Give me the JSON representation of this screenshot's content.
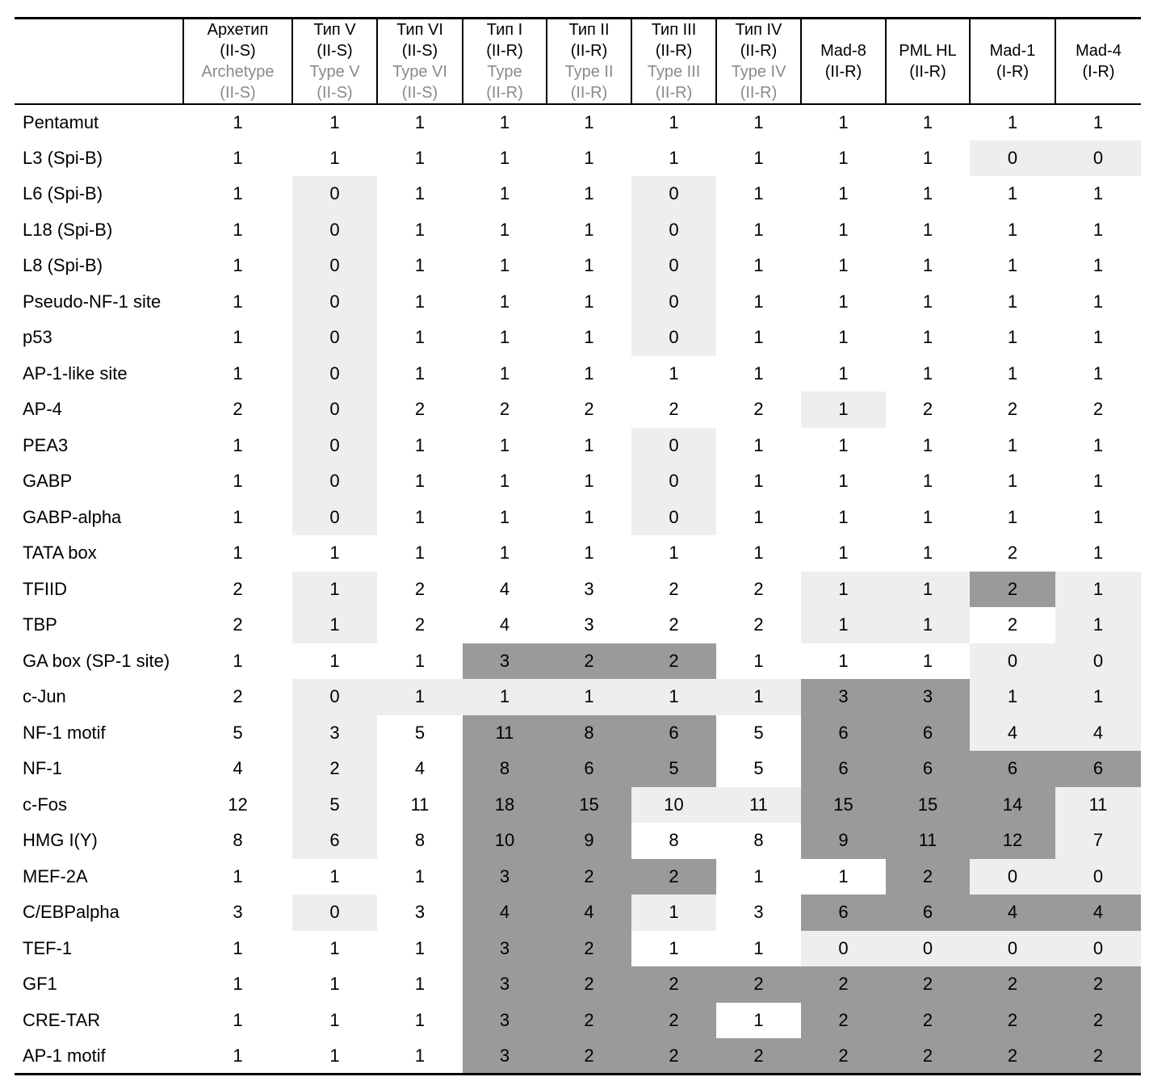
{
  "table": {
    "title_hint": "Transcription factor binding sites counts per promoter type",
    "corner_label": "",
    "columns": [
      {
        "id": "archetype",
        "lines_black": [
          "Архетип",
          "(II-S)"
        ],
        "lines_gray": [
          "Archetype",
          "(II-S)"
        ]
      },
      {
        "id": "type-v",
        "lines_black": [
          "Тип V",
          "(II-S)"
        ],
        "lines_gray": [
          "Type V",
          "(II-S)"
        ]
      },
      {
        "id": "type-vi",
        "lines_black": [
          "Тип VI",
          "(II-S)"
        ],
        "lines_gray": [
          "Type VI",
          "(II-S)"
        ]
      },
      {
        "id": "type-i",
        "lines_black": [
          "Тип I",
          "(II-R)"
        ],
        "lines_gray": [
          "Type",
          "(II-R)"
        ]
      },
      {
        "id": "type-ii",
        "lines_black": [
          "Тип II",
          "(II-R)"
        ],
        "lines_gray": [
          "Type II",
          "(II-R)"
        ]
      },
      {
        "id": "type-iii",
        "lines_black": [
          "Тип III",
          "(II-R)"
        ],
        "lines_gray": [
          "Type III",
          "(II-R)"
        ]
      },
      {
        "id": "type-iv",
        "lines_black": [
          "Тип IV",
          "(II-R)"
        ],
        "lines_gray": [
          "Type IV",
          "(II-R)"
        ]
      },
      {
        "id": "mad-8",
        "lines_black": [
          "Mad-8",
          "(II-R)"
        ],
        "lines_gray": []
      },
      {
        "id": "pml-hl",
        "lines_black": [
          "PML HL",
          "(II-R)"
        ],
        "lines_gray": []
      },
      {
        "id": "mad-1",
        "lines_black": [
          "Mad-1",
          "(I-R)"
        ],
        "lines_gray": []
      },
      {
        "id": "mad-4",
        "lines_black": [
          "Mad-4",
          "(I-R)"
        ],
        "lines_gray": []
      }
    ],
    "shading_legend": {
      "0": "white",
      "1": "light-gray",
      "2": "dark-gray"
    },
    "rows": [
      {
        "label": "Pentamut",
        "values": [
          1,
          1,
          1,
          1,
          1,
          1,
          1,
          1,
          1,
          1,
          1
        ],
        "shading": [
          0,
          0,
          0,
          0,
          0,
          0,
          0,
          0,
          0,
          0,
          0
        ]
      },
      {
        "label": "L3 (Spi-B)",
        "values": [
          1,
          1,
          1,
          1,
          1,
          1,
          1,
          1,
          1,
          0,
          0
        ],
        "shading": [
          0,
          0,
          0,
          0,
          0,
          0,
          0,
          0,
          0,
          1,
          1
        ]
      },
      {
        "label": "L6 (Spi-B)",
        "values": [
          1,
          0,
          1,
          1,
          1,
          0,
          1,
          1,
          1,
          1,
          1
        ],
        "shading": [
          0,
          1,
          0,
          0,
          0,
          1,
          0,
          0,
          0,
          0,
          0
        ]
      },
      {
        "label": "L18 (Spi-B)",
        "values": [
          1,
          0,
          1,
          1,
          1,
          0,
          1,
          1,
          1,
          1,
          1
        ],
        "shading": [
          0,
          1,
          0,
          0,
          0,
          1,
          0,
          0,
          0,
          0,
          0
        ]
      },
      {
        "label": "L8 (Spi-B)",
        "values": [
          1,
          0,
          1,
          1,
          1,
          0,
          1,
          1,
          1,
          1,
          1
        ],
        "shading": [
          0,
          1,
          0,
          0,
          0,
          1,
          0,
          0,
          0,
          0,
          0
        ]
      },
      {
        "label": "Pseudo-NF-1 site",
        "values": [
          1,
          0,
          1,
          1,
          1,
          0,
          1,
          1,
          1,
          1,
          1
        ],
        "shading": [
          0,
          1,
          0,
          0,
          0,
          1,
          0,
          0,
          0,
          0,
          0
        ]
      },
      {
        "label": "p53",
        "values": [
          1,
          0,
          1,
          1,
          1,
          0,
          1,
          1,
          1,
          1,
          1
        ],
        "shading": [
          0,
          1,
          0,
          0,
          0,
          1,
          0,
          0,
          0,
          0,
          0
        ]
      },
      {
        "label": "AP-1-like site",
        "values": [
          1,
          0,
          1,
          1,
          1,
          1,
          1,
          1,
          1,
          1,
          1
        ],
        "shading": [
          0,
          1,
          0,
          0,
          0,
          0,
          0,
          0,
          0,
          0,
          0
        ]
      },
      {
        "label": "AP-4",
        "values": [
          2,
          0,
          2,
          2,
          2,
          2,
          2,
          1,
          2,
          2,
          2
        ],
        "shading": [
          0,
          1,
          0,
          0,
          0,
          0,
          0,
          1,
          0,
          0,
          0
        ]
      },
      {
        "label": "PEA3",
        "values": [
          1,
          0,
          1,
          1,
          1,
          0,
          1,
          1,
          1,
          1,
          1
        ],
        "shading": [
          0,
          1,
          0,
          0,
          0,
          1,
          0,
          0,
          0,
          0,
          0
        ]
      },
      {
        "label": "GABP",
        "values": [
          1,
          0,
          1,
          1,
          1,
          0,
          1,
          1,
          1,
          1,
          1
        ],
        "shading": [
          0,
          1,
          0,
          0,
          0,
          1,
          0,
          0,
          0,
          0,
          0
        ]
      },
      {
        "label": "GABP-alpha",
        "values": [
          1,
          0,
          1,
          1,
          1,
          0,
          1,
          1,
          1,
          1,
          1
        ],
        "shading": [
          0,
          1,
          0,
          0,
          0,
          1,
          0,
          0,
          0,
          0,
          0
        ]
      },
      {
        "label": "TATA box",
        "values": [
          1,
          1,
          1,
          1,
          1,
          1,
          1,
          1,
          1,
          2,
          1
        ],
        "shading": [
          0,
          0,
          0,
          0,
          0,
          0,
          0,
          0,
          0,
          0,
          0
        ]
      },
      {
        "label": "TFIID",
        "values": [
          2,
          1,
          2,
          4,
          3,
          2,
          2,
          1,
          1,
          2,
          1
        ],
        "shading": [
          0,
          1,
          0,
          0,
          0,
          0,
          0,
          1,
          1,
          2,
          1
        ]
      },
      {
        "label": "TBP",
        "values": [
          2,
          1,
          2,
          4,
          3,
          2,
          2,
          1,
          1,
          2,
          1
        ],
        "shading": [
          0,
          1,
          0,
          0,
          0,
          0,
          0,
          1,
          1,
          0,
          1
        ]
      },
      {
        "label": "GA box (SP-1 site)",
        "values": [
          1,
          1,
          1,
          3,
          2,
          2,
          1,
          1,
          1,
          0,
          0
        ],
        "shading": [
          0,
          0,
          0,
          2,
          2,
          2,
          0,
          0,
          0,
          1,
          1
        ]
      },
      {
        "label": "c-Jun",
        "values": [
          2,
          0,
          1,
          1,
          1,
          1,
          1,
          3,
          3,
          1,
          1
        ],
        "shading": [
          0,
          1,
          1,
          1,
          1,
          1,
          1,
          2,
          2,
          1,
          1
        ]
      },
      {
        "label": "NF-1 motif",
        "values": [
          5,
          3,
          5,
          11,
          8,
          6,
          5,
          6,
          6,
          4,
          4
        ],
        "shading": [
          0,
          1,
          0,
          2,
          2,
          2,
          0,
          2,
          2,
          1,
          1
        ]
      },
      {
        "label": "NF-1",
        "values": [
          4,
          2,
          4,
          8,
          6,
          5,
          5,
          6,
          6,
          6,
          6
        ],
        "shading": [
          0,
          1,
          0,
          2,
          2,
          2,
          0,
          2,
          2,
          2,
          2
        ]
      },
      {
        "label": "c-Fos",
        "values": [
          12,
          5,
          11,
          18,
          15,
          10,
          11,
          15,
          15,
          14,
          11
        ],
        "shading": [
          0,
          1,
          0,
          2,
          2,
          1,
          1,
          2,
          2,
          2,
          1
        ]
      },
      {
        "label": "HMG I(Y)",
        "values": [
          8,
          6,
          8,
          10,
          9,
          8,
          8,
          9,
          11,
          12,
          7
        ],
        "shading": [
          0,
          1,
          0,
          2,
          2,
          0,
          0,
          2,
          2,
          2,
          1
        ]
      },
      {
        "label": "MEF-2A",
        "values": [
          1,
          1,
          1,
          3,
          2,
          2,
          1,
          1,
          2,
          0,
          0
        ],
        "shading": [
          0,
          0,
          0,
          2,
          2,
          2,
          0,
          0,
          2,
          1,
          1
        ]
      },
      {
        "label": "C/EBPalpha",
        "values": [
          3,
          0,
          3,
          4,
          4,
          1,
          3,
          6,
          6,
          4,
          4
        ],
        "shading": [
          0,
          1,
          0,
          2,
          2,
          1,
          0,
          2,
          2,
          2,
          2
        ]
      },
      {
        "label": "TEF-1",
        "values": [
          1,
          1,
          1,
          3,
          2,
          1,
          1,
          0,
          0,
          0,
          0
        ],
        "shading": [
          0,
          0,
          0,
          2,
          2,
          0,
          0,
          1,
          1,
          1,
          1
        ]
      },
      {
        "label": "GF1",
        "values": [
          1,
          1,
          1,
          3,
          2,
          2,
          2,
          2,
          2,
          2,
          2
        ],
        "shading": [
          0,
          0,
          0,
          2,
          2,
          2,
          2,
          2,
          2,
          2,
          2
        ]
      },
      {
        "label": "CRE-TAR",
        "values": [
          1,
          1,
          1,
          3,
          2,
          2,
          1,
          2,
          2,
          2,
          2
        ],
        "shading": [
          0,
          0,
          0,
          2,
          2,
          2,
          0,
          2,
          2,
          2,
          2
        ]
      },
      {
        "label": "AP-1 motif",
        "values": [
          1,
          1,
          1,
          3,
          2,
          2,
          2,
          2,
          2,
          2,
          2
        ],
        "shading": [
          0,
          0,
          0,
          2,
          2,
          2,
          2,
          2,
          2,
          2,
          2
        ]
      }
    ]
  },
  "colors": {
    "light_gray": "#eeeef0",
    "dark_gray": "#9a9a9a",
    "header_en_gray": "#8a8a8a",
    "text": "#000000",
    "rule": "#000000",
    "background": "#ffffff"
  }
}
